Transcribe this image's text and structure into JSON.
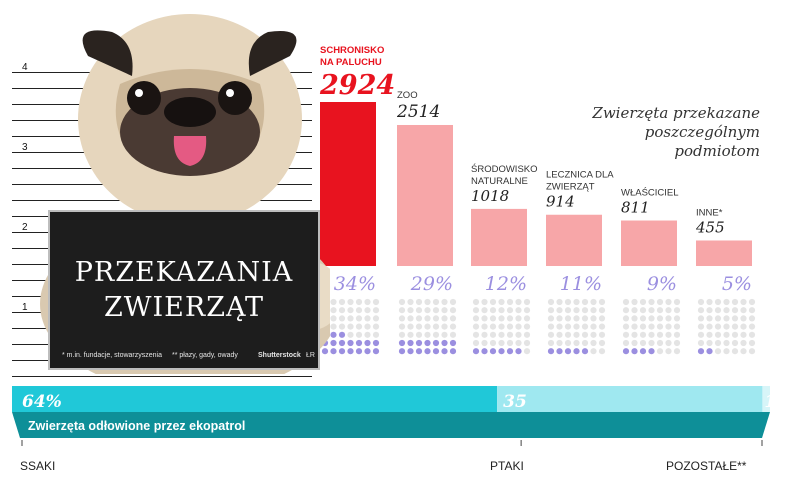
{
  "scale_ticks": [
    "4",
    "3",
    "2",
    "1"
  ],
  "title": "Zwierzęta przekazane poszczególnym podmiotom",
  "sign": {
    "line1": "PRZEKAZANIA",
    "line2": "ZWIERZĄT",
    "footnote1": "* m.in. fundacje, stowarzyszenia",
    "footnote2": "** płazy, gady, owady",
    "credit": "Shutterstock",
    "initials": "ŁR"
  },
  "chart_data": [
    {
      "type": "bar",
      "title": "Zwierzęta przekazane poszczególnym podmiotom",
      "categories": [
        "SCHRONISKO NA PALUCHU",
        "ZOO",
        "ŚRODOWISKO NATURALNE",
        "LECZNICA DLA ZWIERZĄT",
        "WŁAŚCICIEL",
        "INNE*"
      ],
      "values": [
        2924,
        2514,
        1018,
        914,
        811,
        455
      ],
      "percent": [
        34,
        29,
        12,
        11,
        9,
        5
      ],
      "value_labels": [
        "2924",
        "2514",
        "1018",
        "914",
        "811",
        "455"
      ],
      "percent_labels": [
        "34%",
        "29%",
        "12%",
        "11%",
        "9%",
        "5%"
      ],
      "highlight_color": "#e8131f",
      "bar_color": "#f7a6a8",
      "dot_color": "#9b8fe0",
      "dot_empty_color": "#e4e4e4"
    },
    {
      "type": "bar",
      "title": "Zwierzęta odłowione przez ekopatrol",
      "orientation": "stacked-horizontal",
      "categories": [
        "SSAKI",
        "PTAKI",
        "POZOSTAŁE**"
      ],
      "values": [
        64,
        35,
        1
      ],
      "value_labels": [
        "64%",
        "35",
        "1"
      ],
      "color": "#20c8d8"
    }
  ],
  "ribbon": {
    "label": "Zwierzęta odłowione przez ekopatrol",
    "pct1": "64%",
    "pct2": "35",
    "pct3": "1",
    "cat1": "SSAKI",
    "cat2": "PTAKI",
    "cat3": "POZOSTAŁE**"
  }
}
